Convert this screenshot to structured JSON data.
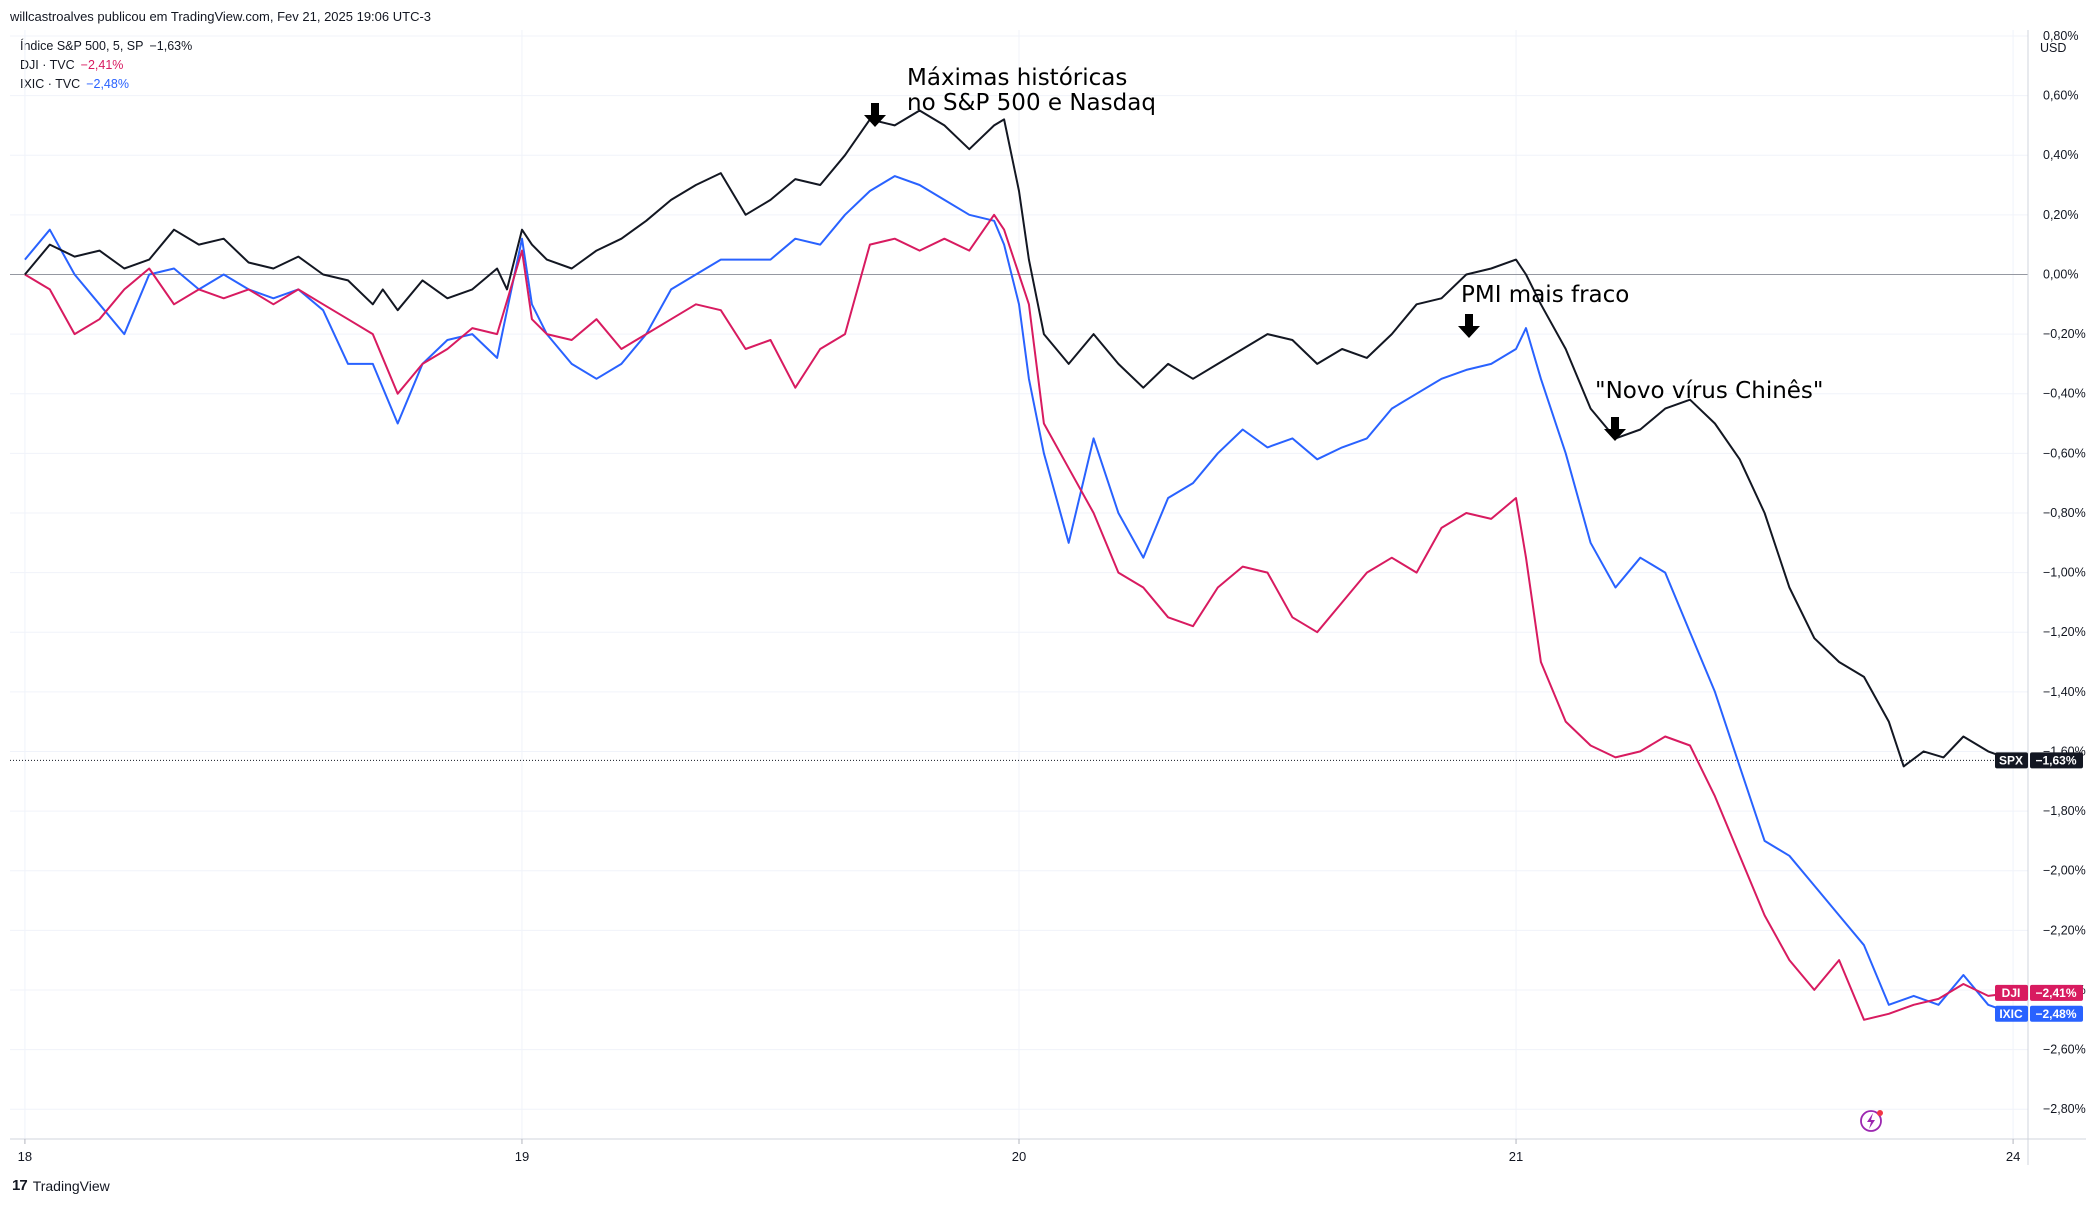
{
  "header": {
    "publisher_line": "willcastroalves publicou em TradingView.com, Fev 21, 2025 19:06 UTC-3"
  },
  "legend": [
    {
      "label": "Índice S&P 500, 5, SP",
      "value": "−1,63%",
      "color": "#131722"
    },
    {
      "label": "DJI · TVC",
      "value": "−2,41%",
      "color": "#d81b60"
    },
    {
      "label": "IXIC · TVC",
      "value": "−2,48%",
      "color": "#2962ff"
    }
  ],
  "currency_label": "USD",
  "footer": {
    "brand": "TradingView",
    "logo_text": "17"
  },
  "annotations": {
    "highs_line1": "Máximas históricas",
    "highs_line2": "no S&P 500 e Nasdaq",
    "pmi": "PMI mais fraco",
    "virus": "\"Novo vírus Chinês\""
  },
  "price_tags": [
    {
      "name": "SPX",
      "value": "−1,63%",
      "color": "#131722"
    },
    {
      "name": "DJI",
      "value": "−2,41%",
      "color": "#d81b60"
    },
    {
      "name": "IXIC",
      "value": "−2,48%",
      "color": "#2962ff"
    }
  ],
  "chart_data": {
    "type": "line",
    "title": "",
    "xlabel": "",
    "ylabel": "",
    "y_unit": "%",
    "ylim": [
      -2.9,
      0.82
    ],
    "y_ticks": [
      0.8,
      0.6,
      0.4,
      0.2,
      0.0,
      -0.2,
      -0.4,
      -0.6,
      -0.8,
      -1.0,
      -1.2,
      -1.4,
      -1.6,
      -1.8,
      -2.0,
      -2.2,
      -2.4,
      -2.6,
      -2.8
    ],
    "y_tick_labels": [
      "0,80%",
      "0,60%",
      "0,40%",
      "0,20%",
      "0,00%",
      "−0,20%",
      "−0,40%",
      "−0,60%",
      "−0,80%",
      "−1,00%",
      "−1,20%",
      "−1,40%",
      "−1,60%",
      "−1,80%",
      "−2,00%",
      "−2,20%",
      "−2,40%",
      "−2,60%",
      "−2,80%"
    ],
    "x_ticks": [
      0,
      1,
      2,
      3,
      4
    ],
    "x_tick_labels": [
      "18",
      "19",
      "20",
      "21",
      "24"
    ],
    "xlim": [
      -0.03,
      4.03
    ],
    "grid": true,
    "legend_position": "top-left",
    "reference_value": -1.63,
    "series": [
      {
        "name": "Índice S&P 500",
        "color": "#131722",
        "points": [
          [
            0.0,
            0.0
          ],
          [
            0.05,
            0.1
          ],
          [
            0.1,
            0.06
          ],
          [
            0.15,
            0.08
          ],
          [
            0.2,
            0.02
          ],
          [
            0.25,
            0.05
          ],
          [
            0.3,
            0.15
          ],
          [
            0.35,
            0.1
          ],
          [
            0.4,
            0.12
          ],
          [
            0.45,
            0.04
          ],
          [
            0.5,
            0.02
          ],
          [
            0.55,
            0.06
          ],
          [
            0.6,
            0.0
          ],
          [
            0.65,
            -0.02
          ],
          [
            0.7,
            -0.1
          ],
          [
            0.72,
            -0.05
          ],
          [
            0.75,
            -0.12
          ],
          [
            0.8,
            -0.02
          ],
          [
            0.85,
            -0.08
          ],
          [
            0.9,
            -0.05
          ],
          [
            0.95,
            0.02
          ],
          [
            0.97,
            -0.05
          ],
          [
            1.0,
            0.15
          ],
          [
            1.02,
            0.1
          ],
          [
            1.05,
            0.05
          ],
          [
            1.1,
            0.02
          ],
          [
            1.15,
            0.08
          ],
          [
            1.2,
            0.12
          ],
          [
            1.25,
            0.18
          ],
          [
            1.3,
            0.25
          ],
          [
            1.35,
            0.3
          ],
          [
            1.4,
            0.34
          ],
          [
            1.45,
            0.2
          ],
          [
            1.5,
            0.25
          ],
          [
            1.55,
            0.32
          ],
          [
            1.6,
            0.3
          ],
          [
            1.65,
            0.4
          ],
          [
            1.7,
            0.52
          ],
          [
            1.75,
            0.5
          ],
          [
            1.8,
            0.55
          ],
          [
            1.85,
            0.5
          ],
          [
            1.9,
            0.42
          ],
          [
            1.95,
            0.5
          ],
          [
            1.97,
            0.52
          ],
          [
            2.0,
            0.28
          ],
          [
            2.02,
            0.05
          ],
          [
            2.05,
            -0.2
          ],
          [
            2.1,
            -0.3
          ],
          [
            2.15,
            -0.2
          ],
          [
            2.2,
            -0.3
          ],
          [
            2.25,
            -0.38
          ],
          [
            2.3,
            -0.3
          ],
          [
            2.35,
            -0.35
          ],
          [
            2.4,
            -0.3
          ],
          [
            2.45,
            -0.25
          ],
          [
            2.5,
            -0.2
          ],
          [
            2.55,
            -0.22
          ],
          [
            2.6,
            -0.3
          ],
          [
            2.65,
            -0.25
          ],
          [
            2.7,
            -0.28
          ],
          [
            2.75,
            -0.2
          ],
          [
            2.8,
            -0.1
          ],
          [
            2.85,
            -0.08
          ],
          [
            2.9,
            0.0
          ],
          [
            2.95,
            0.02
          ],
          [
            3.0,
            0.05
          ],
          [
            3.02,
            0.0
          ],
          [
            3.05,
            -0.1
          ],
          [
            3.1,
            -0.25
          ],
          [
            3.15,
            -0.45
          ],
          [
            3.2,
            -0.55
          ],
          [
            3.25,
            -0.52
          ],
          [
            3.3,
            -0.45
          ],
          [
            3.35,
            -0.42
          ],
          [
            3.4,
            -0.5
          ],
          [
            3.45,
            -0.62
          ],
          [
            3.5,
            -0.8
          ],
          [
            3.55,
            -1.05
          ],
          [
            3.6,
            -1.22
          ],
          [
            3.65,
            -1.3
          ],
          [
            3.7,
            -1.35
          ],
          [
            3.75,
            -1.5
          ],
          [
            3.78,
            -1.65
          ],
          [
            3.82,
            -1.6
          ],
          [
            3.86,
            -1.62
          ],
          [
            3.9,
            -1.55
          ],
          [
            3.95,
            -1.6
          ],
          [
            4.0,
            -1.63
          ]
        ]
      },
      {
        "name": "DJI",
        "color": "#d81b60",
        "points": [
          [
            0.0,
            0.0
          ],
          [
            0.05,
            -0.05
          ],
          [
            0.1,
            -0.2
          ],
          [
            0.15,
            -0.15
          ],
          [
            0.2,
            -0.05
          ],
          [
            0.25,
            0.02
          ],
          [
            0.3,
            -0.1
          ],
          [
            0.35,
            -0.05
          ],
          [
            0.4,
            -0.08
          ],
          [
            0.45,
            -0.05
          ],
          [
            0.5,
            -0.1
          ],
          [
            0.55,
            -0.05
          ],
          [
            0.6,
            -0.1
          ],
          [
            0.65,
            -0.15
          ],
          [
            0.7,
            -0.2
          ],
          [
            0.75,
            -0.4
          ],
          [
            0.8,
            -0.3
          ],
          [
            0.85,
            -0.25
          ],
          [
            0.9,
            -0.18
          ],
          [
            0.95,
            -0.2
          ],
          [
            1.0,
            0.08
          ],
          [
            1.02,
            -0.15
          ],
          [
            1.05,
            -0.2
          ],
          [
            1.1,
            -0.22
          ],
          [
            1.15,
            -0.15
          ],
          [
            1.2,
            -0.25
          ],
          [
            1.25,
            -0.2
          ],
          [
            1.3,
            -0.15
          ],
          [
            1.35,
            -0.1
          ],
          [
            1.4,
            -0.12
          ],
          [
            1.45,
            -0.25
          ],
          [
            1.5,
            -0.22
          ],
          [
            1.55,
            -0.38
          ],
          [
            1.6,
            -0.25
          ],
          [
            1.65,
            -0.2
          ],
          [
            1.7,
            0.1
          ],
          [
            1.75,
            0.12
          ],
          [
            1.8,
            0.08
          ],
          [
            1.85,
            0.12
          ],
          [
            1.9,
            0.08
          ],
          [
            1.95,
            0.2
          ],
          [
            1.97,
            0.15
          ],
          [
            2.0,
            0.0
          ],
          [
            2.02,
            -0.1
          ],
          [
            2.05,
            -0.5
          ],
          [
            2.1,
            -0.65
          ],
          [
            2.15,
            -0.8
          ],
          [
            2.2,
            -1.0
          ],
          [
            2.25,
            -1.05
          ],
          [
            2.3,
            -1.15
          ],
          [
            2.35,
            -1.18
          ],
          [
            2.4,
            -1.05
          ],
          [
            2.45,
            -0.98
          ],
          [
            2.5,
            -1.0
          ],
          [
            2.55,
            -1.15
          ],
          [
            2.6,
            -1.2
          ],
          [
            2.65,
            -1.1
          ],
          [
            2.7,
            -1.0
          ],
          [
            2.75,
            -0.95
          ],
          [
            2.8,
            -1.0
          ],
          [
            2.85,
            -0.85
          ],
          [
            2.9,
            -0.8
          ],
          [
            2.95,
            -0.82
          ],
          [
            3.0,
            -0.75
          ],
          [
            3.02,
            -0.95
          ],
          [
            3.05,
            -1.3
          ],
          [
            3.1,
            -1.5
          ],
          [
            3.15,
            -1.58
          ],
          [
            3.2,
            -1.62
          ],
          [
            3.25,
            -1.6
          ],
          [
            3.3,
            -1.55
          ],
          [
            3.35,
            -1.58
          ],
          [
            3.4,
            -1.75
          ],
          [
            3.45,
            -1.95
          ],
          [
            3.5,
            -2.15
          ],
          [
            3.55,
            -2.3
          ],
          [
            3.6,
            -2.4
          ],
          [
            3.65,
            -2.3
          ],
          [
            3.7,
            -2.5
          ],
          [
            3.75,
            -2.48
          ],
          [
            3.8,
            -2.45
          ],
          [
            3.85,
            -2.43
          ],
          [
            3.9,
            -2.38
          ],
          [
            3.95,
            -2.42
          ],
          [
            4.0,
            -2.41
          ]
        ]
      },
      {
        "name": "IXIC",
        "color": "#2962ff",
        "points": [
          [
            0.0,
            0.05
          ],
          [
            0.05,
            0.15
          ],
          [
            0.1,
            0.0
          ],
          [
            0.15,
            -0.1
          ],
          [
            0.2,
            -0.2
          ],
          [
            0.25,
            0.0
          ],
          [
            0.3,
            0.02
          ],
          [
            0.35,
            -0.05
          ],
          [
            0.4,
            0.0
          ],
          [
            0.45,
            -0.05
          ],
          [
            0.5,
            -0.08
          ],
          [
            0.55,
            -0.05
          ],
          [
            0.6,
            -0.12
          ],
          [
            0.65,
            -0.3
          ],
          [
            0.7,
            -0.3
          ],
          [
            0.75,
            -0.5
          ],
          [
            0.8,
            -0.3
          ],
          [
            0.85,
            -0.22
          ],
          [
            0.9,
            -0.2
          ],
          [
            0.95,
            -0.28
          ],
          [
            1.0,
            0.12
          ],
          [
            1.02,
            -0.1
          ],
          [
            1.05,
            -0.2
          ],
          [
            1.1,
            -0.3
          ],
          [
            1.15,
            -0.35
          ],
          [
            1.2,
            -0.3
          ],
          [
            1.25,
            -0.2
          ],
          [
            1.3,
            -0.05
          ],
          [
            1.35,
            0.0
          ],
          [
            1.4,
            0.05
          ],
          [
            1.45,
            0.05
          ],
          [
            1.5,
            0.05
          ],
          [
            1.55,
            0.12
          ],
          [
            1.6,
            0.1
          ],
          [
            1.65,
            0.2
          ],
          [
            1.7,
            0.28
          ],
          [
            1.75,
            0.33
          ],
          [
            1.8,
            0.3
          ],
          [
            1.85,
            0.25
          ],
          [
            1.9,
            0.2
          ],
          [
            1.95,
            0.18
          ],
          [
            1.97,
            0.1
          ],
          [
            2.0,
            -0.1
          ],
          [
            2.02,
            -0.35
          ],
          [
            2.05,
            -0.6
          ],
          [
            2.1,
            -0.9
          ],
          [
            2.15,
            -0.55
          ],
          [
            2.2,
            -0.8
          ],
          [
            2.25,
            -0.95
          ],
          [
            2.3,
            -0.75
          ],
          [
            2.35,
            -0.7
          ],
          [
            2.4,
            -0.6
          ],
          [
            2.45,
            -0.52
          ],
          [
            2.5,
            -0.58
          ],
          [
            2.55,
            -0.55
          ],
          [
            2.6,
            -0.62
          ],
          [
            2.65,
            -0.58
          ],
          [
            2.7,
            -0.55
          ],
          [
            2.75,
            -0.45
          ],
          [
            2.8,
            -0.4
          ],
          [
            2.85,
            -0.35
          ],
          [
            2.9,
            -0.32
          ],
          [
            2.95,
            -0.3
          ],
          [
            3.0,
            -0.25
          ],
          [
            3.02,
            -0.18
          ],
          [
            3.05,
            -0.35
          ],
          [
            3.1,
            -0.6
          ],
          [
            3.15,
            -0.9
          ],
          [
            3.2,
            -1.05
          ],
          [
            3.25,
            -0.95
          ],
          [
            3.3,
            -1.0
          ],
          [
            3.35,
            -1.2
          ],
          [
            3.4,
            -1.4
          ],
          [
            3.45,
            -1.65
          ],
          [
            3.5,
            -1.9
          ],
          [
            3.55,
            -1.95
          ],
          [
            3.6,
            -2.05
          ],
          [
            3.65,
            -2.15
          ],
          [
            3.7,
            -2.25
          ],
          [
            3.75,
            -2.45
          ],
          [
            3.8,
            -2.42
          ],
          [
            3.85,
            -2.45
          ],
          [
            3.9,
            -2.35
          ],
          [
            3.95,
            -2.45
          ],
          [
            4.0,
            -2.48
          ]
        ]
      }
    ]
  }
}
